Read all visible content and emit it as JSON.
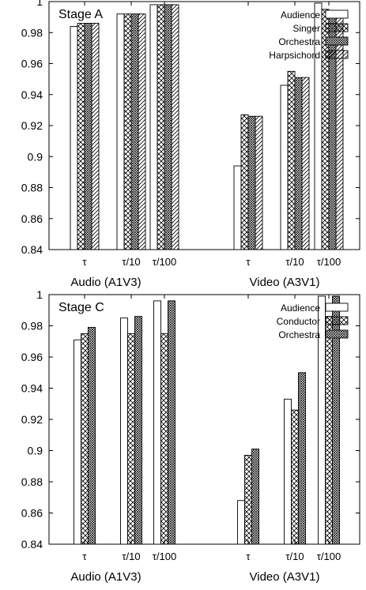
{
  "chart_data": [
    {
      "type": "bar",
      "title": "Stage A",
      "group_labels": [
        "Audio (A1V3)",
        "Video (A3V1)"
      ],
      "categories": [
        "τ",
        "τ/10",
        "τ/100",
        "τ",
        "τ/10",
        "τ/100"
      ],
      "ylim": [
        0.84,
        1.0
      ],
      "yticks": [
        "0.84",
        "0.86",
        "0.88",
        "0.9",
        "0.92",
        "0.94",
        "0.96",
        "0.98",
        "1"
      ],
      "grid": false,
      "legend_position": "top-right",
      "series": [
        {
          "name": "Audience",
          "pattern": "empty",
          "values": [
            0.984,
            0.992,
            0.998,
            0.894,
            0.946,
            0.999
          ]
        },
        {
          "name": "Singer",
          "pattern": "cross",
          "values": [
            0.986,
            0.992,
            0.998,
            0.927,
            0.955,
            0.995
          ]
        },
        {
          "name": "Orchestra",
          "pattern": "dense-cross",
          "values": [
            0.986,
            0.992,
            0.998,
            0.926,
            0.951,
            0.993
          ]
        },
        {
          "name": "Harpsichord",
          "pattern": "diagonal",
          "values": [
            0.986,
            0.992,
            0.998,
            0.926,
            0.951,
            0.993
          ]
        }
      ]
    },
    {
      "type": "bar",
      "title": "Stage C",
      "group_labels": [
        "Audio (A1V3)",
        "Video (A3V1)"
      ],
      "categories": [
        "τ",
        "τ/10",
        "τ/100",
        "τ",
        "τ/10",
        "τ/100"
      ],
      "ylim": [
        0.84,
        1.0
      ],
      "yticks": [
        "0.84",
        "0.86",
        "0.88",
        "0.9",
        "0.92",
        "0.94",
        "0.96",
        "0.98",
        "1"
      ],
      "grid": false,
      "legend_position": "top-right",
      "series": [
        {
          "name": "Audience",
          "pattern": "empty",
          "values": [
            0.971,
            0.985,
            0.996,
            0.868,
            0.933,
            0.999
          ]
        },
        {
          "name": "Conductor",
          "pattern": "cross",
          "values": [
            0.975,
            0.975,
            0.975,
            0.897,
            0.926,
            0.986
          ]
        },
        {
          "name": "Orchestra",
          "pattern": "dense-cross",
          "values": [
            0.979,
            0.986,
            0.996,
            0.901,
            0.95,
            0.999
          ]
        }
      ]
    }
  ]
}
